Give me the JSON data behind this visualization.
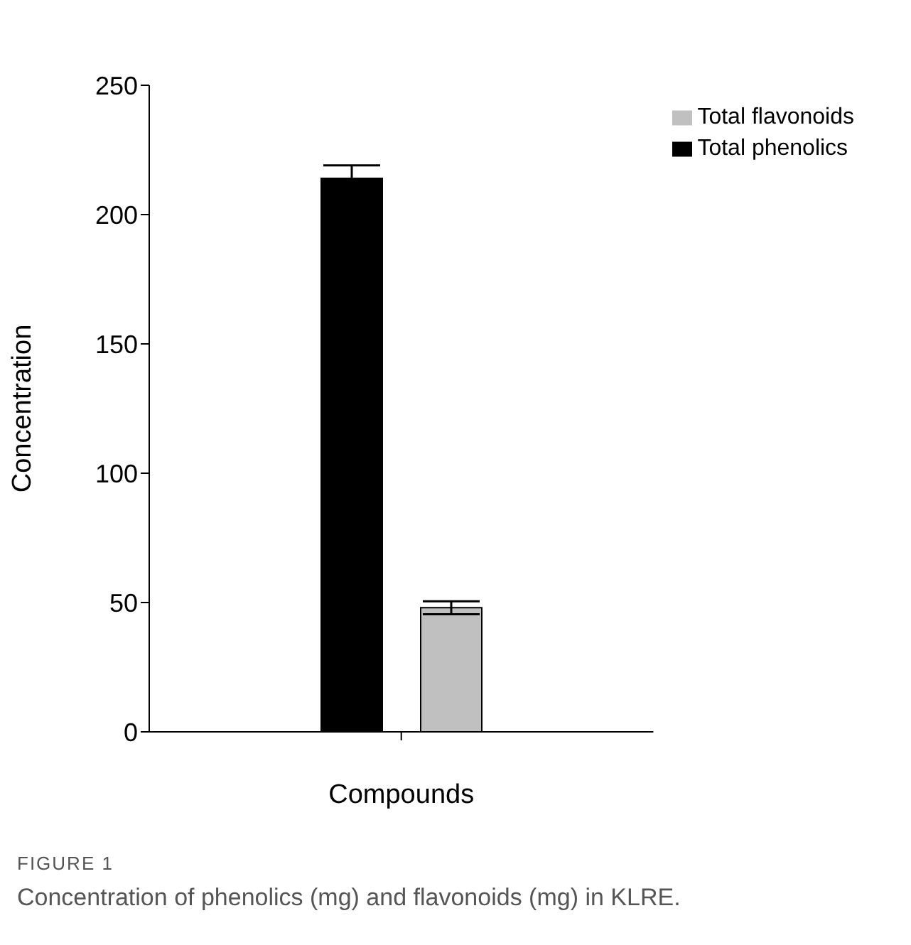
{
  "chart_data": {
    "type": "bar",
    "xlabel": "Compounds",
    "ylabel": "Concentration",
    "categories": [
      null
    ],
    "series": [
      {
        "name": "Total phenolics",
        "color": "#000000",
        "values": [
          214
        ],
        "errors": [
          5
        ]
      },
      {
        "name": "Total flavonoids",
        "color": "#c0c0c0",
        "values": [
          48
        ],
        "errors": [
          2.5
        ]
      }
    ],
    "ylim": [
      0,
      250
    ],
    "yticks": [
      0,
      50,
      100,
      150,
      200,
      250
    ],
    "grid": false,
    "legend": "top right",
    "annotations": [
      "FIGURE 1",
      "Concentration of phenolics (mg) and flavonoids (mg) in KLRE."
    ]
  }
}
